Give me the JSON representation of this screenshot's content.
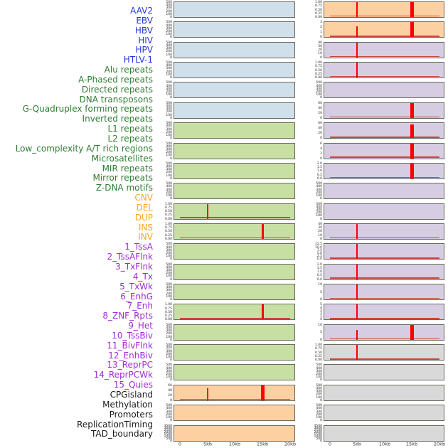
{
  "chart_data": {
    "type": "line",
    "title": "",
    "xlabel": "",
    "ylabel": "",
    "grid": false,
    "legend_position": "none",
    "description": "44 small-multiple coverage panels in two columns; red spikes mark feature signal at 5kb and 15kb positions over a 0-20kb window",
    "x_axis": {
      "ticks": [
        "0",
        "5kb",
        "10kb",
        "15kb",
        "20kb"
      ],
      "positions_kb": [
        0,
        5,
        10,
        15,
        20
      ],
      "range_kb": [
        0,
        20
      ]
    },
    "colors": {
      "spike": "#ff0000",
      "baseline": "#c8473b",
      "panel_border": "#6a6a60"
    },
    "groups": {
      "virus": {
        "bg": "#cfe0eb",
        "label_color": "#2337d8"
      },
      "repeats": {
        "bg": "#c8dfa4",
        "label_color": "#2e7d32"
      },
      "sv": {
        "bg": "#fdd0a2",
        "label_color": "#ffa424"
      },
      "chrom": {
        "bg": "#d6cde2",
        "label_color": "#a32cd4"
      },
      "other": {
        "bg": "#d9d9d9",
        "label_color": "#1a1a1a"
      }
    },
    "panels": [
      {
        "name": "AAV2",
        "group": "virus",
        "col": 0,
        "row": 0,
        "yticks": [
          "500",
          "400",
          "300",
          "200",
          "100",
          "0"
        ],
        "baseline": false,
        "spikes": []
      },
      {
        "name": "EBV",
        "group": "virus",
        "col": 0,
        "row": 1,
        "yticks": [
          "500",
          "400",
          "300",
          "200",
          "100",
          "0"
        ],
        "baseline": false,
        "spikes": []
      },
      {
        "name": "HBV",
        "group": "virus",
        "col": 0,
        "row": 2,
        "yticks": [
          "500",
          "400",
          "300",
          "200",
          "100",
          "0"
        ],
        "baseline": false,
        "spikes": []
      },
      {
        "name": "HIV",
        "group": "virus",
        "col": 0,
        "row": 3,
        "yticks": [
          "500",
          "400",
          "300",
          "200",
          "100",
          "0"
        ],
        "baseline": false,
        "spikes": []
      },
      {
        "name": "HPV",
        "group": "virus",
        "col": 0,
        "row": 4,
        "yticks": [
          "500",
          "400",
          "300",
          "200",
          "100",
          "0"
        ],
        "baseline": false,
        "spikes": []
      },
      {
        "name": "HTLV-1",
        "group": "virus",
        "col": 0,
        "row": 5,
        "yticks": [
          "500",
          "400",
          "300",
          "200",
          "100",
          "0"
        ],
        "baseline": false,
        "spikes": []
      },
      {
        "name": "Alu repeats",
        "group": "repeats",
        "col": 0,
        "row": 6,
        "yticks": [
          "500",
          "400",
          "300",
          "200",
          "100",
          "0"
        ],
        "baseline": false,
        "spikes": []
      },
      {
        "name": "A-Phased repeats",
        "group": "repeats",
        "col": 0,
        "row": 7,
        "yticks": [
          "500",
          "400",
          "300",
          "200",
          "100",
          "0"
        ],
        "baseline": false,
        "spikes": []
      },
      {
        "name": "Directed repeats",
        "group": "repeats",
        "col": 0,
        "row": 8,
        "yticks": [
          "500",
          "400",
          "300",
          "200",
          "100",
          "0"
        ],
        "baseline": false,
        "spikes": []
      },
      {
        "name": "DNA transposons",
        "group": "repeats",
        "col": 0,
        "row": 9,
        "yticks": [
          "500",
          "400",
          "300",
          "200",
          "100",
          "0"
        ],
        "baseline": false,
        "spikes": []
      },
      {
        "name": "G-Quadruplex forming repeats",
        "group": "repeats",
        "col": 0,
        "row": 10,
        "yticks": [
          "1.00",
          "0.75",
          "0.50",
          "0.25",
          "0.00"
        ],
        "baseline": true,
        "spikes": [
          {
            "x_kb": 5,
            "rel_h": 1.0,
            "lw": 2
          }
        ]
      },
      {
        "name": "Inverted repeats",
        "group": "repeats",
        "col": 0,
        "row": 11,
        "yticks": [
          "1.00",
          "0.75",
          "0.50",
          "0.25",
          "0.00"
        ],
        "baseline": true,
        "spikes": [
          {
            "x_kb": 15,
            "rel_h": 1.0,
            "lw": 3
          }
        ]
      },
      {
        "name": "L1 repeats",
        "group": "repeats",
        "col": 0,
        "row": 12,
        "yticks": [
          "500",
          "400",
          "300",
          "200",
          "100",
          "0"
        ],
        "baseline": false,
        "spikes": []
      },
      {
        "name": "L2 repeats",
        "group": "repeats",
        "col": 0,
        "row": 13,
        "yticks": [
          "500",
          "400",
          "300",
          "200",
          "100",
          "0"
        ],
        "baseline": false,
        "spikes": []
      },
      {
        "name": "Low_complexity A/T rich regions",
        "group": "repeats",
        "col": 0,
        "row": 14,
        "yticks": [
          "500",
          "400",
          "300",
          "200",
          "100",
          "0"
        ],
        "baseline": false,
        "spikes": []
      },
      {
        "name": "Microsatellites",
        "group": "repeats",
        "col": 0,
        "row": 15,
        "yticks": [
          "1.00",
          "0.75",
          "0.50",
          "0.25",
          "0.00"
        ],
        "baseline": true,
        "spikes": [
          {
            "x_kb": 15,
            "rel_h": 1.0,
            "lw": 3
          }
        ]
      },
      {
        "name": "MIR repeats",
        "group": "repeats",
        "col": 0,
        "row": 16,
        "yticks": [
          "500",
          "400",
          "300",
          "200",
          "100",
          "0"
        ],
        "baseline": false,
        "spikes": []
      },
      {
        "name": "Mirror repeats",
        "group": "repeats",
        "col": 0,
        "row": 17,
        "yticks": [
          "500",
          "400",
          "300",
          "200",
          "100",
          "0"
        ],
        "baseline": false,
        "spikes": []
      },
      {
        "name": "Z-DNA motifs",
        "group": "repeats",
        "col": 0,
        "row": 18,
        "yticks": [
          "500",
          "400",
          "300",
          "200",
          "100",
          "0"
        ],
        "baseline": false,
        "spikes": []
      },
      {
        "name": "CNV",
        "group": "sv",
        "col": 0,
        "row": 19,
        "yticks": [
          "60",
          "40",
          "20",
          "0"
        ],
        "baseline": true,
        "spikes": [
          {
            "x_kb": 5,
            "rel_h": 0.8,
            "lw": 2
          },
          {
            "x_kb": 15,
            "rel_h": 1.0,
            "lw": 5
          }
        ]
      },
      {
        "name": "DEL",
        "group": "sv",
        "col": 0,
        "row": 20,
        "yticks": [
          "500",
          "400",
          "300",
          "200",
          "100",
          "0"
        ],
        "baseline": false,
        "spikes": []
      },
      {
        "name": "DUP",
        "group": "sv",
        "col": 0,
        "row": 21,
        "yticks": [
          "3500",
          "3000",
          "2500",
          "2000",
          "1500",
          "1000",
          "500",
          "0"
        ],
        "baseline": false,
        "spikes": []
      },
      {
        "name": "INS",
        "group": "sv",
        "col": 1,
        "row": 0,
        "yticks": [
          "1.00",
          "0.75",
          "0.50",
          "0.25",
          "0.00"
        ],
        "baseline": true,
        "spikes": [
          {
            "x_kb": 5,
            "rel_h": 1.0,
            "lw": 2
          },
          {
            "x_kb": 15,
            "rel_h": 1.0,
            "lw": 5
          }
        ]
      },
      {
        "name": "INV",
        "group": "sv",
        "col": 1,
        "row": 1,
        "yticks": [
          "3",
          "2",
          "1",
          "0"
        ],
        "baseline": true,
        "spikes": [
          {
            "x_kb": 5,
            "rel_h": 0.72,
            "lw": 2
          },
          {
            "x_kb": 15,
            "rel_h": 1.0,
            "lw": 5
          }
        ]
      },
      {
        "name": "1_TssA",
        "group": "chrom",
        "col": 1,
        "row": 2,
        "yticks": [
          "40",
          "30",
          "20",
          "10",
          "0"
        ],
        "baseline": true,
        "spikes": [
          {
            "x_kb": 5,
            "rel_h": 1.0,
            "lw": 2
          }
        ]
      },
      {
        "name": "2_TssAFlnk",
        "group": "chrom",
        "col": 1,
        "row": 3,
        "yticks": [
          "1.00",
          "0.75",
          "0.50",
          "0.25",
          "0.00"
        ],
        "baseline": true,
        "spikes": [
          {
            "x_kb": 5,
            "rel_h": 1.0,
            "lw": 2
          }
        ]
      },
      {
        "name": "3_TxFlnk",
        "group": "chrom",
        "col": 1,
        "row": 4,
        "yticks": [
          "500",
          "400",
          "300",
          "200",
          "100",
          "0"
        ],
        "baseline": false,
        "spikes": []
      },
      {
        "name": "4_Tx",
        "group": "chrom",
        "col": 1,
        "row": 5,
        "yticks": [
          "60",
          "40",
          "20",
          "0"
        ],
        "baseline": true,
        "spikes": [
          {
            "x_kb": 15,
            "rel_h": 1.0,
            "lw": 5
          }
        ]
      },
      {
        "name": "5_TxWk",
        "group": "chrom",
        "col": 1,
        "row": 6,
        "yticks": [
          "60",
          "40",
          "20",
          "0"
        ],
        "baseline": true,
        "spikes": [
          {
            "x_kb": 15,
            "rel_h": 0.93,
            "lw": 5
          }
        ]
      },
      {
        "name": "6_EnhG",
        "group": "chrom",
        "col": 1,
        "row": 7,
        "yticks": [
          "6",
          "4",
          "2",
          "0"
        ],
        "baseline": true,
        "spikes": [
          {
            "x_kb": 15,
            "rel_h": 1.0,
            "lw": 5
          }
        ]
      },
      {
        "name": "7_Enh",
        "group": "chrom",
        "col": 1,
        "row": 8,
        "yticks": [
          "2.0",
          "1.5",
          "1.0",
          "0.5",
          "0.0"
        ],
        "baseline": true,
        "spikes": [
          {
            "x_kb": 15,
            "rel_h": 1.0,
            "lw": 5
          }
        ]
      },
      {
        "name": "8_ZNF_Rpts",
        "group": "chrom",
        "col": 1,
        "row": 9,
        "yticks": [
          "500",
          "400",
          "300",
          "200",
          "100",
          "0"
        ],
        "baseline": false,
        "spikes": []
      },
      {
        "name": "9_Het",
        "group": "chrom",
        "col": 1,
        "row": 10,
        "yticks": [
          "500",
          "400",
          "300",
          "200",
          "100",
          "0"
        ],
        "baseline": false,
        "spikes": []
      },
      {
        "name": "10_TssBiv",
        "group": "chrom",
        "col": 1,
        "row": 11,
        "yticks": [
          "40",
          "30",
          "20",
          "10",
          "0"
        ],
        "baseline": true,
        "spikes": [
          {
            "x_kb": 5,
            "rel_h": 1.0,
            "lw": 2
          }
        ]
      },
      {
        "name": "11_BivFlnk",
        "group": "chrom",
        "col": 1,
        "row": 12,
        "yticks": [
          "12.5",
          "10.0",
          "7.5",
          "5.0",
          "2.5",
          "0.0"
        ],
        "baseline": true,
        "spikes": [
          {
            "x_kb": 5,
            "rel_h": 1.0,
            "lw": 2
          }
        ]
      },
      {
        "name": "12_EnhBiv",
        "group": "chrom",
        "col": 1,
        "row": 13,
        "yticks": [
          "2.0",
          "1.5",
          "1.0",
          "0.5",
          "0.0"
        ],
        "baseline": true,
        "spikes": [
          {
            "x_kb": 5,
            "rel_h": 1.0,
            "lw": 2
          }
        ]
      },
      {
        "name": "13_ReprPC",
        "group": "chrom",
        "col": 1,
        "row": 14,
        "yticks": [
          "10",
          "5",
          "0"
        ],
        "baseline": true,
        "spikes": [
          {
            "x_kb": 5,
            "rel_h": 1.0,
            "lw": 2
          }
        ]
      },
      {
        "name": "14_ReprPCWk",
        "group": "chrom",
        "col": 1,
        "row": 15,
        "yticks": [
          "5",
          "4",
          "3",
          "2",
          "1",
          "0"
        ],
        "baseline": true,
        "spikes": [
          {
            "x_kb": 5,
            "rel_h": 1.0,
            "lw": 2
          }
        ]
      },
      {
        "name": "15_Quies",
        "group": "chrom",
        "col": 1,
        "row": 16,
        "yticks": [
          "10",
          "5",
          "0"
        ],
        "baseline": true,
        "spikes": [
          {
            "x_kb": 5,
            "rel_h": 0.65,
            "lw": 2
          },
          {
            "x_kb": 15,
            "rel_h": 1.0,
            "lw": 5
          }
        ]
      },
      {
        "name": "CPGisland",
        "group": "other",
        "col": 1,
        "row": 17,
        "yticks": [
          "1.00",
          "0.75",
          "0.50",
          "0.25",
          "0.00"
        ],
        "baseline": true,
        "spikes": [
          {
            "x_kb": 5,
            "rel_h": 1.0,
            "lw": 2
          }
        ]
      },
      {
        "name": "Methylation",
        "group": "other",
        "col": 1,
        "row": 18,
        "yticks": [
          "500",
          "400",
          "300",
          "200",
          "100",
          "0"
        ],
        "baseline": false,
        "spikes": []
      },
      {
        "name": "Promoters",
        "group": "other",
        "col": 1,
        "row": 19,
        "yticks": [
          "500",
          "400",
          "300",
          "200",
          "100",
          "0"
        ],
        "baseline": false,
        "spikes": []
      },
      {
        "name": "ReplicationTiming",
        "group": "other",
        "col": 1,
        "row": 20,
        "yticks": [
          "500",
          "400",
          "300",
          "200",
          "100",
          "0"
        ],
        "baseline": false,
        "spikes": []
      },
      {
        "name": "TAD_boundary",
        "group": "other",
        "col": 1,
        "row": 21,
        "yticks": [
          "3500",
          "3000",
          "2500",
          "2000",
          "1500",
          "1000",
          "500",
          "0"
        ],
        "baseline": false,
        "spikes": []
      }
    ]
  }
}
